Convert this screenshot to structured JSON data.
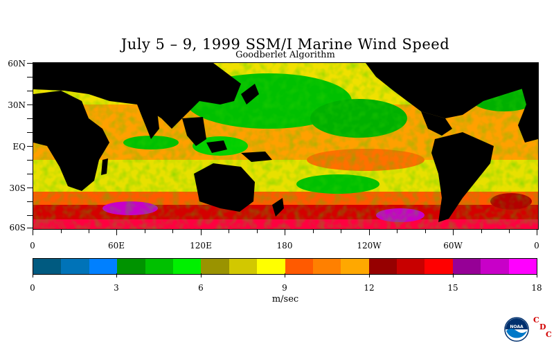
{
  "title": "July 5 – 9, 1999 SSM/I Marine Wind Speed",
  "subtitle": "Goodberlet Algorithm",
  "latitude_labels": [
    "60N",
    "30N",
    "EQ",
    "30S",
    "60S"
  ],
  "longitude_labels": [
    "0",
    "60E",
    "120E",
    "180",
    "120W",
    "60W",
    "0"
  ],
  "colorbar": {
    "colors": [
      "#005a80",
      "#0073b8",
      "#0080ff",
      "#009300",
      "#00c000",
      "#00f000",
      "#9a9300",
      "#d2c800",
      "#ffff00",
      "#ff5a00",
      "#ff8000",
      "#ffa800",
      "#960000",
      "#c80000",
      "#ff0000",
      "#960096",
      "#c800c8",
      "#ff00ff"
    ],
    "tick_labels": [
      "0",
      "3",
      "6",
      "9",
      "12",
      "15",
      "18"
    ],
    "unit": "m/sec"
  },
  "logo": {
    "name": "NOAA",
    "letters": [
      "C",
      "D",
      "C"
    ]
  },
  "colors": {
    "land": "#000000",
    "calm": "#00c000",
    "moderate": "#ffff00",
    "fresh": "#ff8000",
    "strong": "#d40000",
    "gale": "#c800c8"
  }
}
